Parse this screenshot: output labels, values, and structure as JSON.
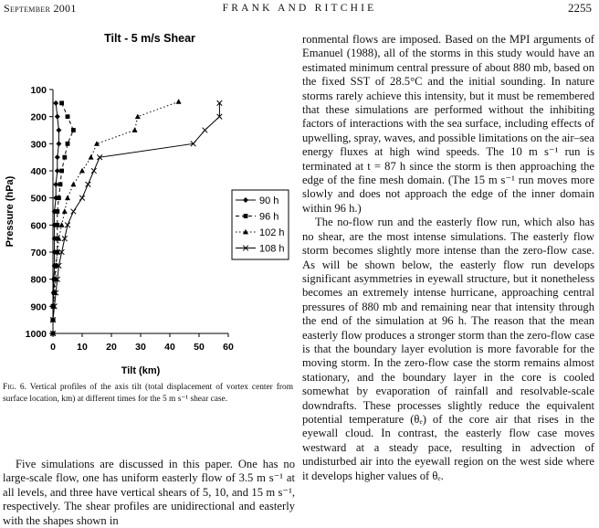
{
  "header": {
    "left": "September 2001",
    "center": "FRANK AND RITCHIE",
    "right": "2255"
  },
  "figure": {
    "caption_label": "Fig. 6.",
    "caption_text": " Vertical profiles of the axis tilt (total displacement of vortex center from surface location, km) at different times for the 5 m s⁻¹ shear case."
  },
  "chart_data": {
    "type": "line",
    "title": "Tilt -  5 m/s Shear",
    "xlabel": "Tilt  (km)",
    "ylabel": "Pressure  (hPa)",
    "xlim": [
      0,
      60
    ],
    "ylim": [
      1000,
      100
    ],
    "y_inverted": true,
    "grid": false,
    "legend_position": "right",
    "x_ticks": [
      0,
      10,
      20,
      30,
      40,
      50,
      60
    ],
    "y_ticks": [
      100,
      200,
      300,
      400,
      500,
      600,
      700,
      800,
      900,
      1000
    ],
    "series": [
      {
        "name": "90 h",
        "marker": "diamond",
        "line": "solid",
        "points": [
          [
            1,
            150
          ],
          [
            1.5,
            200
          ],
          [
            2,
            250
          ],
          [
            2,
            300
          ],
          [
            1.5,
            350
          ],
          [
            1.5,
            400
          ],
          [
            1,
            450
          ],
          [
            1,
            500
          ],
          [
            0.5,
            550
          ],
          [
            0.5,
            600
          ],
          [
            0.5,
            650
          ],
          [
            0.5,
            700
          ],
          [
            0.5,
            750
          ],
          [
            0.3,
            800
          ],
          [
            0.2,
            850
          ],
          [
            0,
            900
          ],
          [
            0,
            950
          ],
          [
            0,
            1000
          ]
        ]
      },
      {
        "name": "96 h",
        "marker": "square",
        "line": "dashed",
        "points": [
          [
            3,
            150
          ],
          [
            5,
            200
          ],
          [
            7,
            250
          ],
          [
            5,
            300
          ],
          [
            4,
            350
          ],
          [
            3,
            400
          ],
          [
            2.5,
            450
          ],
          [
            2,
            500
          ],
          [
            1.5,
            550
          ],
          [
            1.5,
            600
          ],
          [
            1.5,
            650
          ],
          [
            1.5,
            700
          ],
          [
            1,
            750
          ],
          [
            0.5,
            800
          ],
          [
            0.5,
            850
          ],
          [
            0,
            900
          ],
          [
            0,
            950
          ],
          [
            0,
            1000
          ]
        ]
      },
      {
        "name": "102 h",
        "marker": "triangle",
        "line": "dotted",
        "points": [
          [
            43,
            145
          ],
          [
            29,
            200
          ],
          [
            28,
            250
          ],
          [
            15,
            300
          ],
          [
            13,
            350
          ],
          [
            10,
            400
          ],
          [
            7,
            450
          ],
          [
            5,
            500
          ],
          [
            4,
            550
          ],
          [
            3,
            600
          ],
          [
            2,
            650
          ],
          [
            1.5,
            700
          ],
          [
            1,
            750
          ],
          [
            1,
            800
          ],
          [
            0.5,
            850
          ],
          [
            0.3,
            900
          ],
          [
            0,
            950
          ],
          [
            0,
            1000
          ]
        ]
      },
      {
        "name": "108 h",
        "marker": "x",
        "line": "solid",
        "points": [
          [
            57,
            150
          ],
          [
            57,
            200
          ],
          [
            52,
            250
          ],
          [
            48,
            300
          ],
          [
            16,
            350
          ],
          [
            14,
            400
          ],
          [
            12,
            450
          ],
          [
            10,
            500
          ],
          [
            7,
            550
          ],
          [
            5,
            600
          ],
          [
            4,
            650
          ],
          [
            3,
            700
          ],
          [
            2,
            750
          ],
          [
            1.5,
            800
          ],
          [
            1,
            850
          ],
          [
            0.5,
            900
          ],
          [
            0,
            950
          ],
          [
            0,
            1000
          ]
        ]
      }
    ]
  },
  "left_column": {
    "p1": "Five simulations are discussed in this paper. One has no large-scale flow, one has uniform easterly flow of 3.5 m s⁻¹ at all levels, and three have vertical shears of 5, 10, and 15 m s⁻¹, respectively. The shear profiles are unidirectional and easterly with the shapes shown in"
  },
  "right_column": {
    "p1": "ronmental flows are imposed. Based on the MPI arguments of Emanuel (1988), all of the storms in this study would have an estimated minimum central pressure of about 880 mb, based on the fixed SST of 28.5°C and the initial sounding. In nature storms rarely achieve this intensity, but it must be remembered that these simulations are performed without the inhibiting factors of interactions with the sea surface, including effects of upwelling, spray, waves, and possible limitations on the air–sea energy fluxes at high wind speeds. The 10 m s⁻¹ run is terminated at t = 87 h since the storm is then approaching the edge of the fine mesh domain. (The 15 m s⁻¹ run moves more slowly and does not approach the edge of the inner domain within 96 h.)",
    "p2": "The no-flow run and the easterly flow run, which also has no shear, are the most intense simulations. The easterly flow storm becomes slightly more intense than the zero-flow case. As will be shown below, the easterly flow run develops significant asymmetries in eyewall structure, but it nonetheless becomes an extremely intense hurricane, approaching central pressures of 880 mb and remaining near that intensity through the end of the simulation at 96 h. The reason that the mean easterly flow produces a stronger storm than the zero-flow case is that the boundary layer evolution is more favorable for the moving storm. In the zero-flow case the storm remains almost stationary, and the boundary layer in the core is cooled somewhat by evaporation of rainfall and resolvable-scale downdrafts. These processes slightly reduce the equivalent potential temperature (θₑ) of the core air that rises in the eyewall cloud. In contrast, the easterly flow case moves westward at a steady pace, resulting in advection of undisturbed air into the eyewall region on the west side where it develops higher values of θₑ."
  }
}
